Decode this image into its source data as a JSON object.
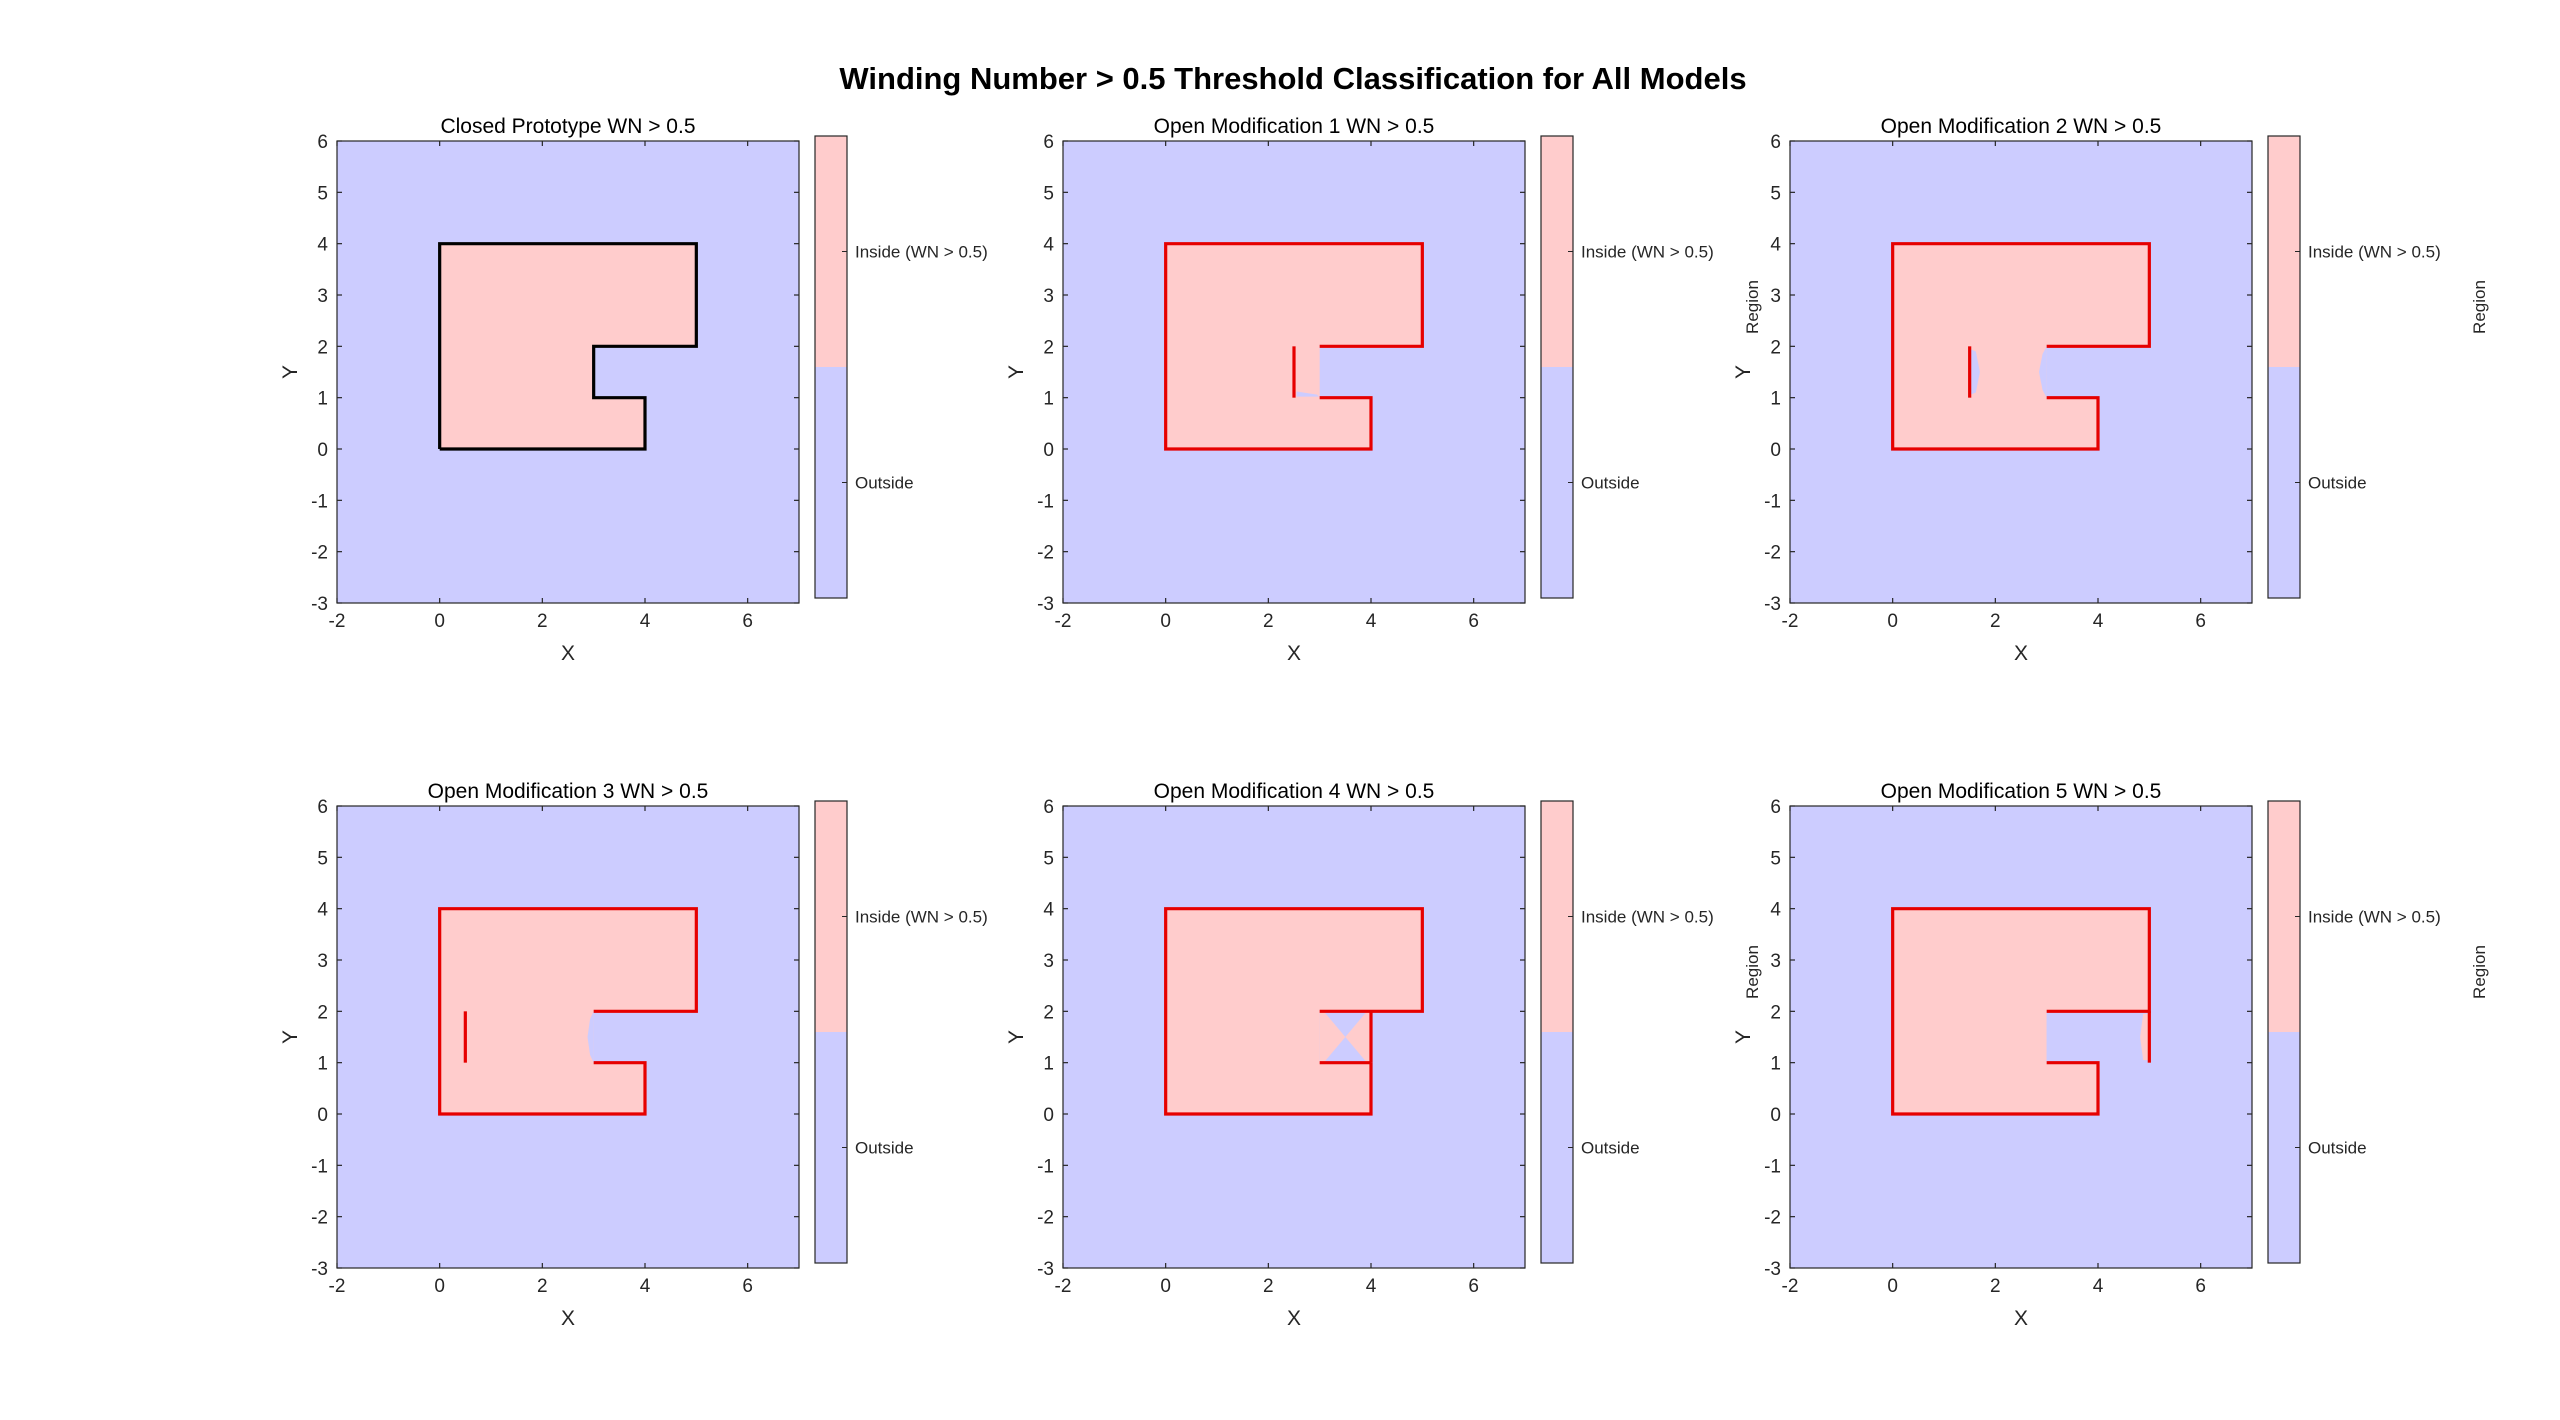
{
  "figure": {
    "title": "Winding Number > 0.5 Threshold Classification for All Models"
  },
  "colors": {
    "inside": "#ffcccc",
    "outside": "#ccccff",
    "closed_curve": "#000000",
    "open_curve": "#e60000",
    "axes": "#262626"
  },
  "chart_data": [
    {
      "type": "heatmap",
      "title": "Closed Prototype WN > 0.5",
      "xlabel": "X",
      "ylabel": "Y",
      "xlim": [
        -2,
        7
      ],
      "ylim": [
        -3,
        6
      ],
      "xticks": [
        -2,
        0,
        2,
        4,
        6
      ],
      "yticks": [
        -3,
        -2,
        -1,
        0,
        1,
        2,
        3,
        4,
        5,
        6
      ],
      "closed": true,
      "inside_polygons": [
        [
          [
            0,
            0
          ],
          [
            4,
            0
          ],
          [
            4,
            1
          ],
          [
            3,
            1
          ],
          [
            3,
            2
          ],
          [
            5,
            2
          ],
          [
            5,
            4
          ],
          [
            0,
            4
          ]
        ]
      ],
      "outside_patches": [],
      "curve": [
        [
          [
            0,
            0
          ],
          [
            4,
            0
          ],
          [
            4,
            1
          ],
          [
            3,
            1
          ],
          [
            3,
            2
          ],
          [
            5,
            2
          ],
          [
            5,
            4
          ],
          [
            0,
            4
          ],
          [
            0,
            0
          ]
        ]
      ],
      "colorbar": {
        "label": "",
        "top_label": "Inside (WN > 0.5)",
        "bottom_label": "Outside"
      }
    },
    {
      "type": "heatmap",
      "title": "Open Modification 1 WN > 0.5",
      "xlabel": "X",
      "ylabel": "Y",
      "xlim": [
        -2,
        7
      ],
      "ylim": [
        -3,
        6
      ],
      "xticks": [
        -2,
        0,
        2,
        4,
        6
      ],
      "yticks": [
        -3,
        -2,
        -1,
        0,
        1,
        2,
        3,
        4,
        5,
        6
      ],
      "closed": false,
      "inside_polygons": [
        [
          [
            0,
            0
          ],
          [
            4,
            0
          ],
          [
            4,
            1
          ],
          [
            3,
            1
          ],
          [
            3,
            2
          ],
          [
            5,
            2
          ],
          [
            5,
            4
          ],
          [
            0,
            4
          ]
        ]
      ],
      "outside_patches": [
        [
          [
            2.55,
            1.02
          ],
          [
            2.55,
            1.12
          ],
          [
            2.95,
            1.06
          ],
          [
            3.0,
            1.0
          ],
          [
            3.0,
            1.02
          ]
        ]
      ],
      "curve": [
        [
          [
            3,
            2
          ],
          [
            5,
            2
          ],
          [
            5,
            4
          ],
          [
            0,
            4
          ],
          [
            0,
            0
          ],
          [
            4,
            0
          ],
          [
            4,
            1
          ],
          [
            3,
            1
          ]
        ],
        [
          [
            2.5,
            1
          ],
          [
            2.5,
            2
          ]
        ]
      ],
      "colorbar": {
        "label": "Region",
        "top_label": "Inside (WN > 0.5)",
        "bottom_label": "Outside"
      }
    },
    {
      "type": "heatmap",
      "title": "Open Modification 2 WN > 0.5",
      "xlabel": "X",
      "ylabel": "Y",
      "xlim": [
        -2,
        7
      ],
      "ylim": [
        -3,
        6
      ],
      "xticks": [
        -2,
        0,
        2,
        4,
        6
      ],
      "yticks": [
        -3,
        -2,
        -1,
        0,
        1,
        2,
        3,
        4,
        5,
        6
      ],
      "closed": false,
      "inside_polygons": [
        [
          [
            0,
            0
          ],
          [
            4,
            0
          ],
          [
            4,
            1
          ],
          [
            3,
            1
          ],
          [
            3,
            2
          ],
          [
            5,
            2
          ],
          [
            5,
            4
          ],
          [
            0,
            4
          ]
        ]
      ],
      "outside_patches": [
        [
          [
            3,
            1
          ],
          [
            2.92,
            1.15
          ],
          [
            2.85,
            1.5
          ],
          [
            2.92,
            1.85
          ],
          [
            3,
            2
          ]
        ],
        [
          [
            1.5,
            1.05
          ],
          [
            1.62,
            1.1
          ],
          [
            1.7,
            1.5
          ],
          [
            1.62,
            1.9
          ],
          [
            1.5,
            1.95
          ]
        ]
      ],
      "curve": [
        [
          [
            3,
            2
          ],
          [
            5,
            2
          ],
          [
            5,
            4
          ],
          [
            0,
            4
          ],
          [
            0,
            0
          ],
          [
            4,
            0
          ],
          [
            4,
            1
          ],
          [
            3,
            1
          ]
        ],
        [
          [
            1.5,
            1
          ],
          [
            1.5,
            2
          ]
        ]
      ],
      "colorbar": {
        "label": "Region",
        "top_label": "Inside (WN > 0.5)",
        "bottom_label": "Outside"
      }
    },
    {
      "type": "heatmap",
      "title": "Open Modification 3 WN > 0.5",
      "xlabel": "X",
      "ylabel": "Y",
      "xlim": [
        -2,
        7
      ],
      "ylim": [
        -3,
        6
      ],
      "xticks": [
        -2,
        0,
        2,
        4,
        6
      ],
      "yticks": [
        -3,
        -2,
        -1,
        0,
        1,
        2,
        3,
        4,
        5,
        6
      ],
      "closed": false,
      "inside_polygons": [
        [
          [
            0,
            0
          ],
          [
            4,
            0
          ],
          [
            4,
            1
          ],
          [
            3,
            1
          ],
          [
            3,
            2
          ],
          [
            5,
            2
          ],
          [
            5,
            4
          ],
          [
            0,
            4
          ]
        ]
      ],
      "outside_patches": [
        [
          [
            3,
            1
          ],
          [
            2.93,
            1.15
          ],
          [
            2.88,
            1.5
          ],
          [
            2.93,
            1.85
          ],
          [
            3,
            2
          ]
        ]
      ],
      "curve": [
        [
          [
            3,
            2
          ],
          [
            5,
            2
          ],
          [
            5,
            4
          ],
          [
            0,
            4
          ],
          [
            0,
            0
          ],
          [
            4,
            0
          ],
          [
            4,
            1
          ],
          [
            3,
            1
          ]
        ],
        [
          [
            0.5,
            1
          ],
          [
            0.5,
            2
          ]
        ]
      ],
      "colorbar": {
        "label": "",
        "top_label": "Inside (WN > 0.5)",
        "bottom_label": "Outside"
      }
    },
    {
      "type": "heatmap",
      "title": "Open Modification 4 WN > 0.5",
      "xlabel": "X",
      "ylabel": "Y",
      "xlim": [
        -2,
        7
      ],
      "ylim": [
        -3,
        6
      ],
      "xticks": [
        -2,
        0,
        2,
        4,
        6
      ],
      "yticks": [
        -3,
        -2,
        -1,
        0,
        1,
        2,
        3,
        4,
        5,
        6
      ],
      "closed": false,
      "inside_polygons": [
        [
          [
            0,
            0
          ],
          [
            4,
            0
          ],
          [
            4,
            1
          ],
          [
            3,
            1
          ],
          [
            3,
            2
          ],
          [
            5,
            2
          ],
          [
            5,
            4
          ],
          [
            0,
            4
          ]
        ],
        [
          [
            3,
            1
          ],
          [
            4,
            1
          ],
          [
            4,
            2
          ],
          [
            3,
            2
          ]
        ]
      ],
      "outside_patches": [
        [
          [
            3.08,
            2
          ],
          [
            3.92,
            2
          ],
          [
            3.5,
            1.5
          ]
        ],
        [
          [
            3.08,
            1
          ],
          [
            3.92,
            1
          ],
          [
            3.5,
            1.5
          ]
        ]
      ],
      "curve": [
        [
          [
            4,
            1
          ],
          [
            4,
            0
          ],
          [
            0,
            0
          ],
          [
            0,
            4
          ],
          [
            5,
            4
          ],
          [
            5,
            2
          ],
          [
            3,
            2
          ]
        ],
        [
          [
            4,
            1
          ],
          [
            4,
            2
          ]
        ],
        [
          [
            4,
            1
          ],
          [
            3,
            1
          ]
        ]
      ],
      "colorbar": {
        "label": "Region",
        "top_label": "Inside (WN > 0.5)",
        "bottom_label": "Outside"
      }
    },
    {
      "type": "heatmap",
      "title": "Open Modification 5 WN > 0.5",
      "xlabel": "X",
      "ylabel": "Y",
      "xlim": [
        -2,
        7
      ],
      "ylim": [
        -3,
        6
      ],
      "xticks": [
        -2,
        0,
        2,
        4,
        6
      ],
      "yticks": [
        -3,
        -2,
        -1,
        0,
        1,
        2,
        3,
        4,
        5,
        6
      ],
      "closed": false,
      "inside_polygons": [
        [
          [
            0,
            0
          ],
          [
            4,
            0
          ],
          [
            4,
            1
          ],
          [
            3,
            1
          ],
          [
            3,
            2
          ],
          [
            5,
            2
          ],
          [
            5,
            4
          ],
          [
            0,
            4
          ]
        ],
        [
          [
            4.88,
            1.05
          ],
          [
            5,
            1.05
          ],
          [
            5,
            1.95
          ],
          [
            4.88,
            1.95
          ],
          [
            4.82,
            1.5
          ]
        ]
      ],
      "outside_patches": [
        [
          [
            3,
            1
          ],
          [
            3.12,
            1.15
          ],
          [
            3.2,
            1.5
          ],
          [
            3.12,
            1.85
          ],
          [
            3,
            2
          ]
        ]
      ],
      "curve": [
        [
          [
            3,
            1
          ],
          [
            4,
            1
          ],
          [
            4,
            0
          ],
          [
            0,
            0
          ],
          [
            0,
            4
          ],
          [
            5,
            4
          ],
          [
            5,
            2
          ],
          [
            3,
            2
          ]
        ],
        [
          [
            5,
            1
          ],
          [
            5,
            2
          ]
        ]
      ],
      "colorbar": {
        "label": "Region",
        "top_label": "Inside (WN > 0.5)",
        "bottom_label": "Outside"
      }
    }
  ]
}
